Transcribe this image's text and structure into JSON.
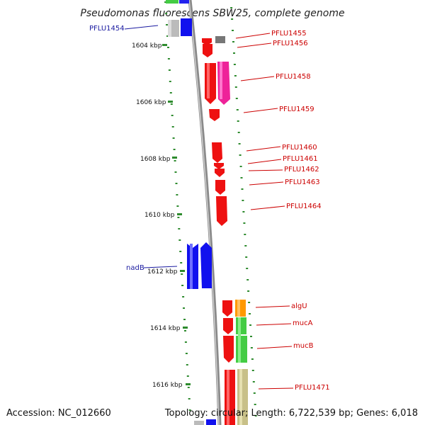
{
  "title": "Pseudomonas fluorescens SBW25, complete genome",
  "accession": "Accession: NC_012660",
  "summary": "Topology: circular; Length: 6,722,539 bp; Genes: 6,018",
  "scale": {
    "tick_labels": [
      "1604 kbp",
      "1606 kbp",
      "1608 kbp",
      "1610 kbp",
      "1612 kbp",
      "1614 kbp",
      "1616 kbp"
    ]
  },
  "colors": {
    "backbone": "#999999",
    "tick": "#2e8b2e",
    "left_label": "#1a1aa0",
    "right_label": "#cc0000"
  },
  "genes_left_labels": [
    "PFLU1454",
    "nadB"
  ],
  "genes_right_labels": [
    "PFLU1455",
    "PFLU1456",
    "PFLU1458",
    "PFLU1459",
    "PFLU1460",
    "PFLU1461",
    "PFLU1462",
    "PFLU1463",
    "PFLU1464",
    "algU",
    "mucA",
    "mucB",
    "PFLU1471"
  ]
}
